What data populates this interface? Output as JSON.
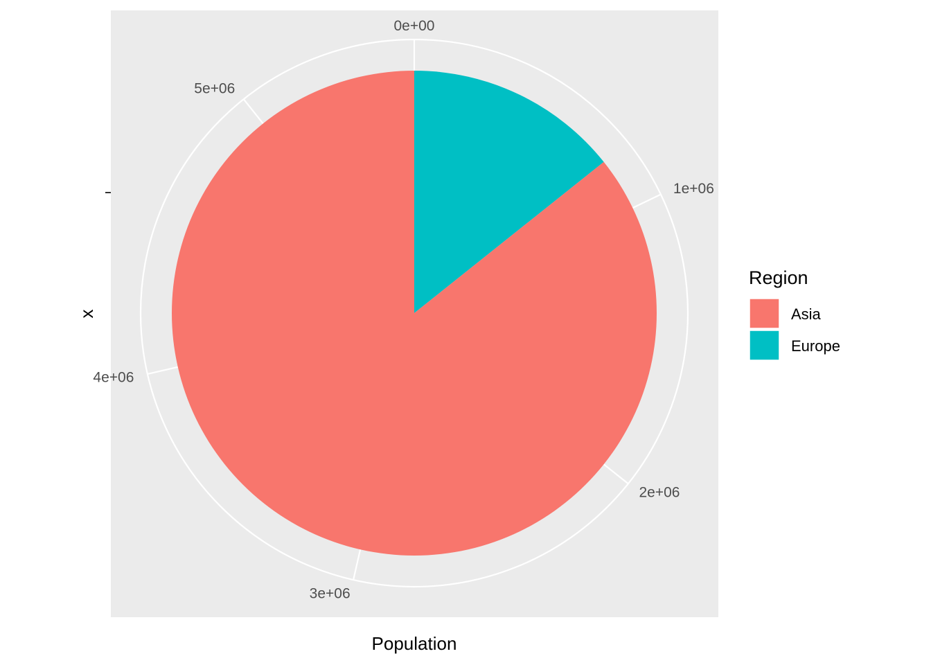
{
  "chart_data": {
    "type": "pie",
    "xlabel": "Population",
    "ylabel": "x",
    "theta_ticks": [
      {
        "value": 0,
        "label": "0e+00"
      },
      {
        "value": 1000000,
        "label": "1e+06"
      },
      {
        "value": 2000000,
        "label": "2e+06"
      },
      {
        "value": 3000000,
        "label": "3e+06"
      },
      {
        "value": 4000000,
        "label": "4e+06"
      },
      {
        "value": 5000000,
        "label": "5e+06"
      }
    ],
    "slices": [
      {
        "name": "Europe",
        "value": 800000,
        "color": "#00BFC4"
      },
      {
        "name": "Asia",
        "value": 4800000,
        "color": "#F8766D"
      }
    ],
    "legend": {
      "title": "Region",
      "position": "right",
      "entries": [
        {
          "label": "Asia",
          "color": "#F8766D"
        },
        {
          "label": "Europe",
          "color": "#00BFC4"
        }
      ]
    },
    "panel_background": "#EBEBEB",
    "grid": true
  }
}
